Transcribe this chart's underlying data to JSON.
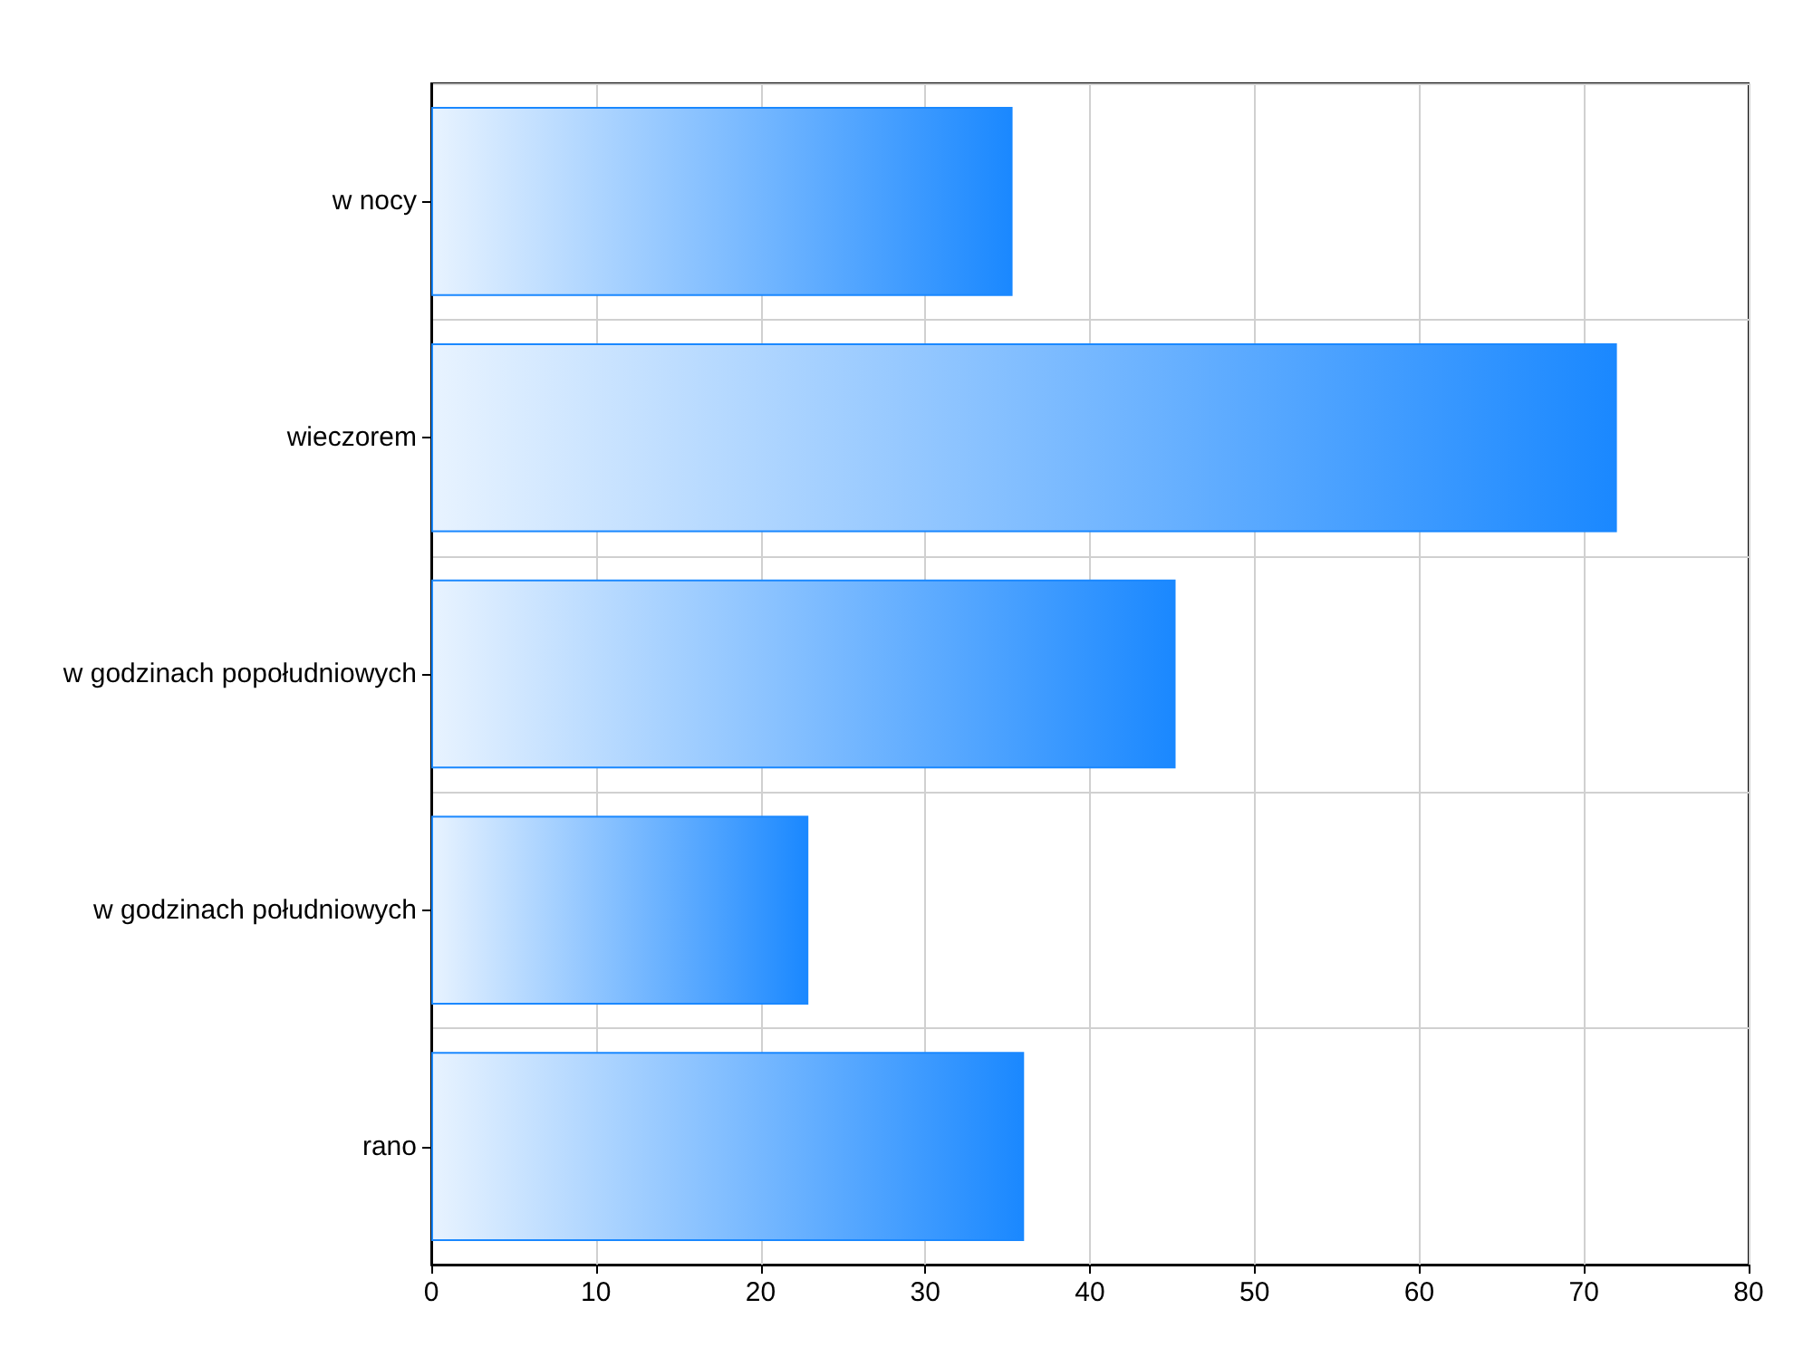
{
  "chart_data": {
    "type": "bar",
    "orientation": "horizontal",
    "categories": [
      "w nocy",
      "wieczorem",
      "w godzinach popołudniowych",
      "w godzinach południowych",
      "rano"
    ],
    "values": [
      35.3,
      72,
      45.2,
      22.9,
      36
    ],
    "color": "#1a88ff",
    "xlim": [
      0,
      80
    ],
    "xticks": [
      0,
      10,
      20,
      30,
      40,
      50,
      60,
      70,
      80
    ],
    "grid": true
  }
}
